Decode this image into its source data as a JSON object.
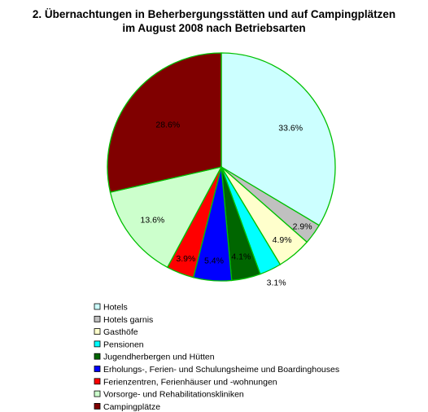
{
  "chart_data": {
    "type": "pie",
    "title_line1": "2. Übernachtungen in Beherbergungsstätten und auf Campingplätzen",
    "title_line2": "im August 2008 nach Betriebsarten",
    "unit": "%",
    "legend_position": "bottom-left",
    "slice_border_color": "#00c000",
    "slices": [
      {
        "name": "Hotels",
        "value": 33.6,
        "label": "33.6%",
        "color": "#ccffff"
      },
      {
        "name": "Hotels garnis",
        "value": 2.9,
        "label": "2.9%",
        "color": "#c0c0c0"
      },
      {
        "name": "Gasthöfe",
        "value": 4.9,
        "label": "4.9%",
        "color": "#ffffcc"
      },
      {
        "name": "Pensionen",
        "value": 3.1,
        "label": "3.1%",
        "color": "#00ffff"
      },
      {
        "name": "Jugendherbergen und Hütten",
        "value": 4.1,
        "label": "4.1%",
        "color": "#006600"
      },
      {
        "name": "Erholungs-, Ferien- und Schulungsheime und Boardinghouses",
        "value": 5.4,
        "label": "5.4%",
        "color": "#0000ff"
      },
      {
        "name": "Ferienzentren, Ferienhäuser und -wohnungen",
        "value": 3.9,
        "label": "3.9%",
        "color": "#ff0000"
      },
      {
        "name": "Vorsorge- und Rehabilitationskliniken",
        "value": 13.6,
        "label": "13.6%",
        "color": "#ccffcc"
      },
      {
        "name": "Campingplätze",
        "value": 28.6,
        "label": "28.6%",
        "color": "#800000"
      }
    ]
  }
}
